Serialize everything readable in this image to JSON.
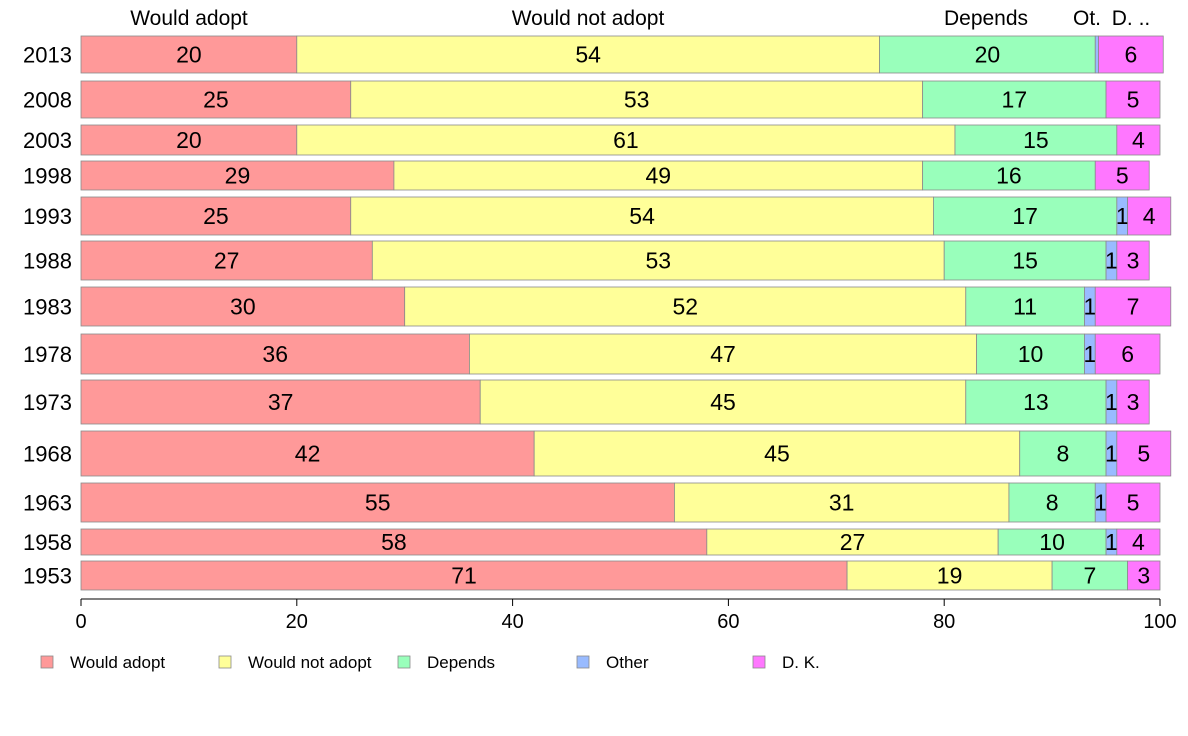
{
  "chart_data": {
    "type": "bar",
    "orientation": "horizontal",
    "stacked": true,
    "categories": [
      "2013",
      "2008",
      "2003",
      "1998",
      "1993",
      "1988",
      "1983",
      "1978",
      "1973",
      "1968",
      "1963",
      "1958",
      "1953"
    ],
    "series": [
      {
        "name": "Would adopt",
        "color": "#ff9999",
        "values": [
          20,
          25,
          20,
          29,
          25,
          27,
          30,
          36,
          37,
          42,
          55,
          58,
          71
        ]
      },
      {
        "name": "Would not adopt",
        "color": "#ffff99",
        "values": [
          54,
          53,
          61,
          49,
          54,
          53,
          52,
          47,
          45,
          45,
          31,
          27,
          19
        ]
      },
      {
        "name": "Depends",
        "color": "#99ffbb",
        "values": [
          20,
          17,
          15,
          16,
          17,
          15,
          11,
          10,
          13,
          8,
          8,
          10,
          7
        ]
      },
      {
        "name": "Other",
        "color": "#99bbff",
        "values": [
          0.3,
          0,
          0,
          0,
          1,
          1,
          1,
          1,
          1,
          1,
          1,
          1,
          0
        ]
      },
      {
        "name": "D. K.",
        "color": "#ff77ff",
        "values": [
          6,
          5,
          4,
          5,
          4,
          3,
          7,
          6,
          3,
          5,
          5,
          4,
          3
        ]
      }
    ],
    "data_labels": [
      [
        "20",
        "54",
        "20",
        "",
        "6"
      ],
      [
        "25",
        "53",
        "17",
        "",
        "5"
      ],
      [
        "20",
        "61",
        "15",
        "",
        "4"
      ],
      [
        "29",
        "49",
        "16",
        "",
        "5"
      ],
      [
        "25",
        "54",
        "17",
        "1",
        "4"
      ],
      [
        "27",
        "53",
        "15",
        "1",
        "3"
      ],
      [
        "30",
        "52",
        "11",
        "1",
        "7"
      ],
      [
        "36",
        "47",
        "10",
        "1",
        "6"
      ],
      [
        "37",
        "45",
        "13",
        "1",
        "3"
      ],
      [
        "42",
        "45",
        "8",
        "1",
        "5"
      ],
      [
        "55",
        "31",
        "8",
        "1",
        "5"
      ],
      [
        "58",
        "27",
        "10",
        "1",
        "4"
      ],
      [
        "71",
        "19",
        "7",
        "",
        "3"
      ]
    ],
    "column_headers": [
      "Would adopt",
      "Would not adopt",
      "Depends",
      "Ot.",
      "D. .."
    ],
    "xlim": [
      0,
      100
    ],
    "xticks": [
      "0",
      "20",
      "40",
      "60",
      "80",
      "100"
    ],
    "grid": false,
    "legend_position": "bottom",
    "legend": [
      "Would adopt",
      "Would not adopt",
      "Depends",
      "Other",
      "D. K."
    ]
  }
}
